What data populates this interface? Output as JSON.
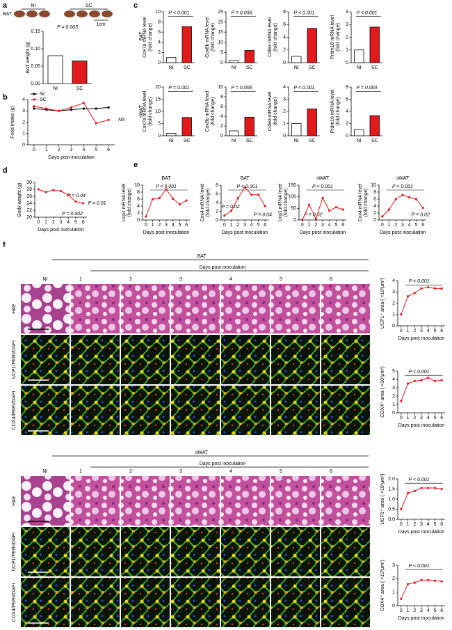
{
  "panels": [
    "a",
    "b",
    "c",
    "d",
    "e",
    "f"
  ],
  "photo": {
    "tissue": "BAT",
    "groups": [
      "NI",
      "SC"
    ],
    "scale": "1cm"
  },
  "c_rows": [
    "BAT",
    "sWAT"
  ],
  "chart_data": [
    {
      "type": "bar",
      "ylabel": [
        "BAT weight (g)"
      ],
      "categories": [
        "NI",
        "SC"
      ],
      "values": [
        0.08,
        0.065
      ],
      "colors": [
        "#ffffff",
        "#e31a1c"
      ],
      "ylim": [
        0,
        0.15
      ],
      "yticks": [
        {
          "value": 0,
          "label": "0.00"
        },
        {
          "value": 0.05,
          "label": "0.05"
        },
        {
          "value": 0.1,
          "label": "0.10"
        },
        {
          "value": 0.15,
          "label": "0.15"
        }
      ],
      "annotations": [
        "P = 0.003"
      ]
    },
    {
      "type": "line",
      "ylabel": [
        "Food intake (g)"
      ],
      "xlabel": "Days post inoculation",
      "x": [
        0,
        1,
        2,
        3,
        4,
        5,
        6
      ],
      "xlim": [
        -0.5,
        6.5
      ],
      "xticks": [
        0,
        1,
        2,
        3,
        4,
        5,
        6
      ],
      "series": [
        {
          "name": "NI",
          "color": "#000000",
          "values": [
            3.2,
            3.1,
            3.0,
            3.1,
            3.2,
            3.2,
            3.3
          ]
        },
        {
          "name": "SC",
          "color": "#e31a1c",
          "values": [
            3.4,
            3.2,
            3.0,
            3.3,
            3.7,
            1.9,
            2.2
          ]
        }
      ],
      "ylim": [
        0,
        4
      ],
      "yticks": [
        0,
        1,
        2,
        3,
        4
      ],
      "legend": "top-left",
      "annotations": [
        "NS"
      ]
    },
    {
      "type": "bar",
      "ylabel": [
        "Cox7a mRNA level",
        "(fold change)"
      ],
      "categories": [
        "NI",
        "SC"
      ],
      "values": [
        1,
        7.1
      ],
      "colors": [
        "#ffffff",
        "#e31a1c"
      ],
      "ylim": [
        0,
        10
      ],
      "yticks": [
        0,
        2,
        4,
        6,
        8,
        10
      ],
      "annotations": [
        "P < 0.001"
      ]
    },
    {
      "type": "bar",
      "ylabel": [
        "Cox8b mRNA level",
        "(fold change)"
      ],
      "categories": [
        "NI",
        "SC"
      ],
      "values": [
        1,
        6
      ],
      "colors": [
        "#ffffff",
        "#e31a1c"
      ],
      "ylim": [
        0,
        25
      ],
      "yticks": [
        0,
        5,
        10,
        15,
        20,
        25
      ],
      "annotations": [
        "P = 0.036"
      ]
    },
    {
      "type": "bar",
      "ylabel": [
        "Cidea mRNA level",
        "(fold change)"
      ],
      "categories": [
        "NI",
        "SC"
      ],
      "values": [
        1,
        5.4
      ],
      "colors": [
        "#ffffff",
        "#e31a1c"
      ],
      "ylim": [
        0,
        8
      ],
      "yticks": [
        0,
        2,
        4,
        6,
        8
      ],
      "annotations": [
        "P < 0.001"
      ]
    },
    {
      "type": "bar",
      "ylabel": [
        "Prdm16 mRNA level",
        "(fold change)"
      ],
      "categories": [
        "NI",
        "SC"
      ],
      "values": [
        1,
        2.8
      ],
      "colors": [
        "#ffffff",
        "#e31a1c"
      ],
      "ylim": [
        0,
        4
      ],
      "yticks": [
        0,
        1,
        2,
        3,
        4
      ],
      "annotations": [
        "P < 0.001"
      ]
    },
    {
      "type": "bar",
      "ylabel": [
        "Cox7a mRNA level",
        "(fold change)"
      ],
      "categories": [
        "NI",
        "SC"
      ],
      "values": [
        1,
        7.5
      ],
      "colors": [
        "#ffffff",
        "#e31a1c"
      ],
      "ylim": [
        0,
        20
      ],
      "yticks": [
        0,
        5,
        10,
        15,
        20
      ],
      "annotations": [
        "P = 0.001"
      ]
    },
    {
      "type": "bar",
      "ylabel": [
        "Cox8b mRNA level",
        "(fold change)"
      ],
      "categories": [
        "NI",
        "SC"
      ],
      "values": [
        1,
        3.8
      ],
      "colors": [
        "#ffffff",
        "#e31a1c"
      ],
      "ylim": [
        0,
        10
      ],
      "yticks": [
        0,
        2,
        4,
        6,
        8,
        10
      ],
      "annotations": [
        "P = 0.006"
      ]
    },
    {
      "type": "bar",
      "ylabel": [
        "Cidea mRNA level",
        "(fold change)"
      ],
      "categories": [
        "NI",
        "SC"
      ],
      "values": [
        1,
        2.2
      ],
      "colors": [
        "#ffffff",
        "#e31a1c"
      ],
      "ylim": [
        0,
        4
      ],
      "yticks": [
        0,
        1,
        2,
        3,
        4
      ],
      "annotations": [
        "P < 0.001"
      ]
    },
    {
      "type": "bar",
      "ylabel": [
        "Prdm16 mRNA level",
        "(fold change)"
      ],
      "categories": [
        "NI",
        "SC"
      ],
      "values": [
        1,
        3.3
      ],
      "colors": [
        "#ffffff",
        "#e31a1c"
      ],
      "ylim": [
        0,
        8
      ],
      "yticks": [
        0,
        2,
        4,
        6,
        8
      ],
      "annotations": [
        "P = 0.003"
      ]
    },
    {
      "type": "line",
      "ylabel": [
        "Body weight (g)"
      ],
      "xlabel": "Days post inoculation",
      "x": [
        0,
        1,
        2,
        3,
        4,
        5,
        6
      ],
      "xlim": [
        -0.5,
        6.5
      ],
      "xticks": [
        0,
        1,
        2,
        3,
        4,
        5,
        6
      ],
      "values": [
        28,
        27.2,
        27.8,
        27.5,
        26.4,
        24.5,
        24.0
      ],
      "color": "#e31a1c",
      "ylim": [
        20,
        30
      ],
      "yticks": [
        20,
        22,
        24,
        26,
        28,
        30
      ],
      "annotations": [
        "P = 0.04",
        "P = 0.01",
        "P = 0.002"
      ]
    },
    {
      "type": "line",
      "title": "BAT",
      "ylabel": [
        "Ucp1 mRNA level",
        "(fold change)"
      ],
      "xlabel": "Days post inoculation",
      "x": [
        0,
        1,
        2,
        3,
        4,
        5,
        6
      ],
      "xlim": [
        -0.5,
        6.5
      ],
      "xticks": [
        0,
        1,
        2,
        3,
        4,
        5,
        6
      ],
      "values": [
        1,
        6,
        6.3,
        8.8,
        6.1,
        4.5,
        5.6
      ],
      "color": "#e31a1c",
      "ylim": [
        0,
        10
      ],
      "yticks": [
        0,
        2,
        4,
        6,
        8,
        10
      ],
      "annotations": [
        "P < 0.001"
      ]
    },
    {
      "type": "line",
      "title": "BAT",
      "ylabel": [
        "Cox4 mRNA level",
        "(fold change)"
      ],
      "xlabel": "Days post inoculation",
      "x": [
        0,
        1,
        2,
        3,
        4,
        5,
        6
      ],
      "xlim": [
        -0.5,
        6.5
      ],
      "xticks": [
        0,
        1,
        2,
        3,
        4,
        5,
        6
      ],
      "values": [
        1,
        2.1,
        5.0,
        7.5,
        5.8,
        5.8,
        3.2
      ],
      "color": "#e31a1c",
      "ylim": [
        0,
        8
      ],
      "yticks": [
        0,
        2,
        4,
        6,
        8
      ],
      "annotations": [
        "P < 0.001",
        "P = 0.02",
        "P = 0.04"
      ]
    },
    {
      "type": "line",
      "title": "sWAT",
      "ylabel": [
        "Ucp1 mRNA level",
        "(fold change)"
      ],
      "xlabel": "Days post inoculation",
      "x": [
        0,
        1,
        2,
        3,
        4,
        5,
        6
      ],
      "xlim": [
        -0.5,
        6.5
      ],
      "xticks": [
        0,
        1,
        2,
        3,
        4,
        5,
        6
      ],
      "values": [
        1,
        65,
        5,
        95,
        40,
        55,
        45
      ],
      "color": "#e31a1c",
      "ylim": [
        0,
        150
      ],
      "yticks": [
        0,
        50,
        100,
        150
      ],
      "annotations": [
        "P < 0.001",
        "P = 0.02"
      ]
    },
    {
      "type": "line",
      "title": "sWAT",
      "ylabel": [
        "Cox4 mRNA level",
        "(fold change)"
      ],
      "xlabel": "Days post inoculation",
      "x": [
        0,
        1,
        2,
        3,
        4,
        5,
        6
      ],
      "xlim": [
        -0.5,
        6.5
      ],
      "xticks": [
        0,
        1,
        2,
        3,
        4,
        5,
        6
      ],
      "values": [
        1,
        3,
        6,
        7.2,
        6.5,
        6,
        3.5
      ],
      "color": "#e31a1c",
      "ylim": [
        0,
        10
      ],
      "yticks": [
        0,
        2,
        4,
        6,
        8,
        10
      ],
      "annotations": [
        "P < 0.001",
        "P = 0.02"
      ]
    },
    {
      "type": "line",
      "ylabel": [
        "UCP1⁺ area ( ×10³μm²)"
      ],
      "xlabel": "Days post inoculation",
      "x": [
        0,
        1,
        2,
        3,
        4,
        5,
        6
      ],
      "xlim": [
        -0.5,
        6.5
      ],
      "xticks": [
        0,
        1,
        2,
        3,
        4,
        5,
        6
      ],
      "values": [
        1.0,
        2.6,
        2.9,
        3.3,
        3.4,
        3.3,
        3.3
      ],
      "color": "#e31a1c",
      "ylim": [
        0,
        4
      ],
      "yticks": [
        0,
        1,
        2,
        3,
        4
      ],
      "annotations": [
        "P < 0.001"
      ]
    },
    {
      "type": "line",
      "ylabel": [
        "COX4⁺ area ( ×10³μm²)"
      ],
      "xlabel": "Days post inoculation",
      "x": [
        0,
        1,
        2,
        3,
        4,
        5,
        6
      ],
      "xlim": [
        -0.5,
        6.5
      ],
      "xticks": [
        0,
        1,
        2,
        3,
        4,
        5,
        6
      ],
      "values": [
        1.4,
        3.5,
        3.8,
        3.9,
        4.2,
        3.8,
        3.9
      ],
      "color": "#e31a1c",
      "ylim": [
        0,
        5
      ],
      "yticks": [
        0,
        1,
        2,
        3,
        4,
        5
      ],
      "annotations": [
        "P < 0.001"
      ]
    },
    {
      "type": "line",
      "ylabel": [
        "UCP1⁺ area ( ×10³μm²)"
      ],
      "xlabel": "Days post inoculation",
      "x": [
        0,
        1,
        2,
        3,
        4,
        5,
        6
      ],
      "xlim": [
        -0.5,
        6.5
      ],
      "xticks": [
        0,
        1,
        2,
        3,
        4,
        5,
        6
      ],
      "values": [
        0.5,
        1.3,
        1.4,
        1.55,
        1.55,
        1.55,
        1.5
      ],
      "color": "#e31a1c",
      "ylim": [
        0,
        2
      ],
      "yticks": [
        {
          "value": 0,
          "label": "0.0"
        },
        {
          "value": 0.5,
          "label": "0.5"
        },
        {
          "value": 1,
          "label": "1.0"
        },
        {
          "value": 1.5,
          "label": "1.5"
        },
        {
          "value": 2,
          "label": "2.0"
        }
      ],
      "annotations": [
        "P < 0.001"
      ]
    },
    {
      "type": "line",
      "ylabel": [
        "COX4⁺ area ( ×10³μm²)"
      ],
      "xlabel": "Days post inoculation",
      "x": [
        0,
        1,
        2,
        3,
        4,
        5,
        6
      ],
      "xlim": [
        -0.5,
        6.5
      ],
      "xticks": [
        0,
        1,
        2,
        3,
        4,
        5,
        6
      ],
      "values": [
        0.5,
        1.6,
        1.7,
        1.9,
        1.9,
        1.85,
        1.8
      ],
      "color": "#e31a1c",
      "ylim": [
        0,
        3
      ],
      "yticks": [
        0,
        1,
        2,
        3
      ],
      "annotations": [
        "P < 0.001"
      ]
    }
  ],
  "figure_f": {
    "blocks": [
      {
        "tissue": "BAT",
        "header": "Days post inoculation",
        "columns": [
          "NI",
          "1",
          "2",
          "3",
          "4",
          "5",
          "6"
        ],
        "rows": [
          "H&E",
          "UCP1/PERI/DAPI",
          "COX4/PERI/DAPI"
        ]
      },
      {
        "tissue": "sWAT",
        "header": "Days post inoculation",
        "columns": [
          "NI",
          "1",
          "2",
          "3",
          "4",
          "5",
          "6"
        ],
        "rows": [
          "H&E",
          "UCP1/PERI/DAPI",
          "COX4/PERI/DAPI"
        ]
      }
    ]
  }
}
